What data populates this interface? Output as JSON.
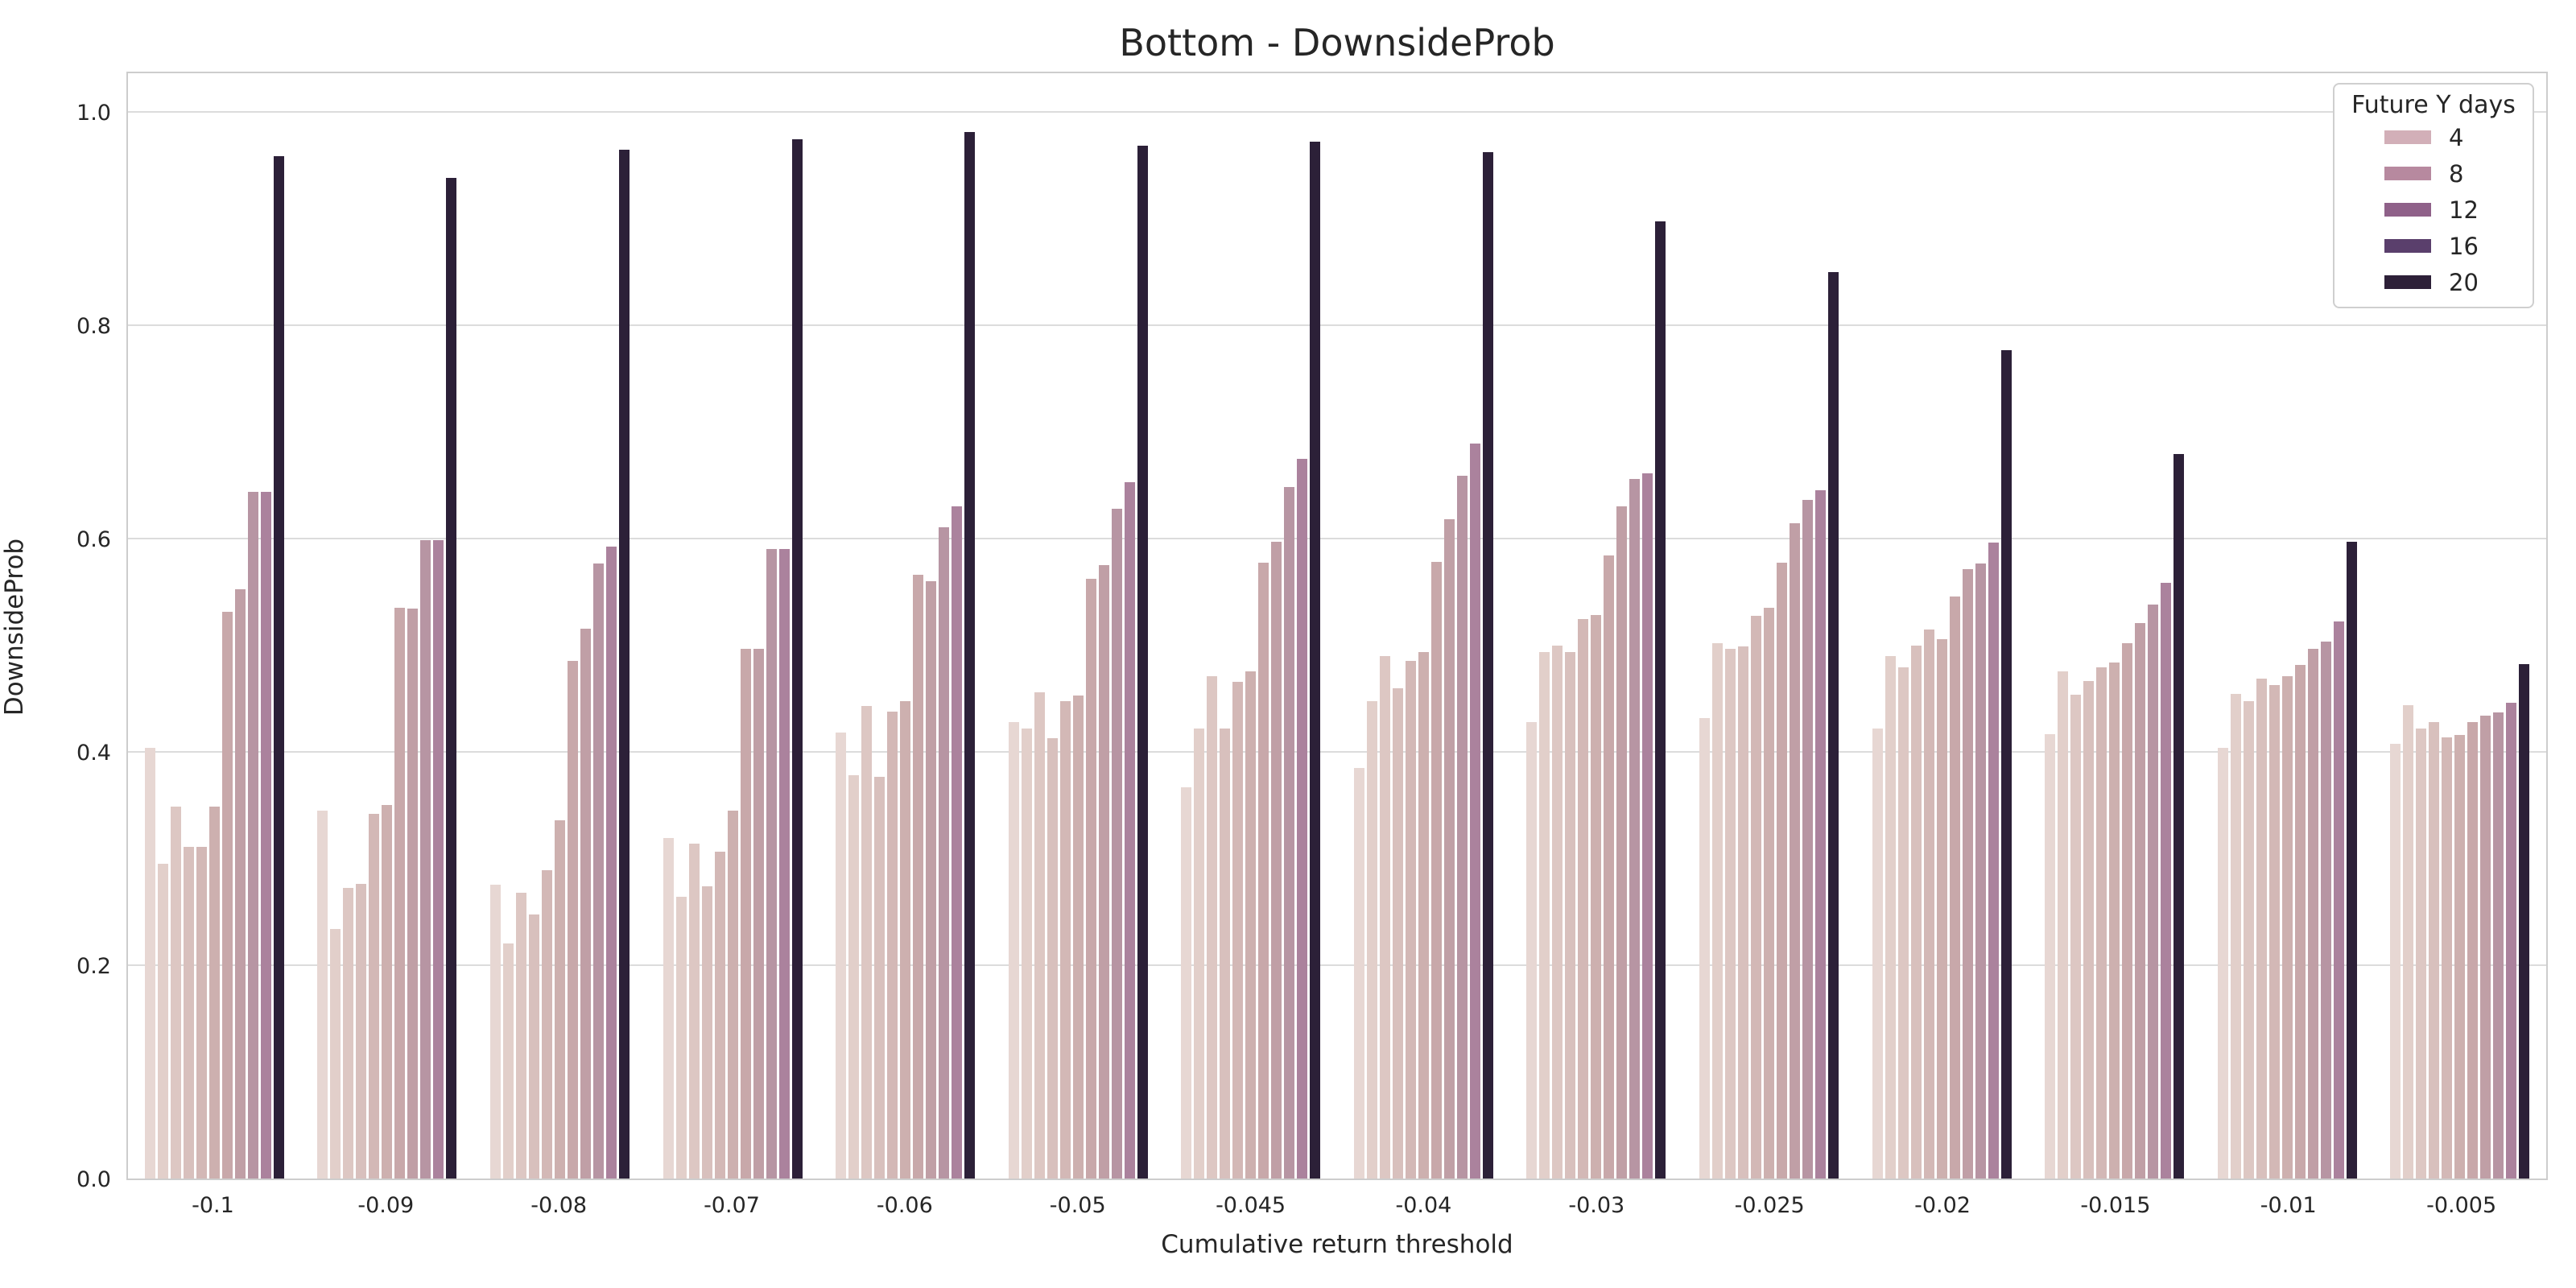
{
  "title": "Bottom - DownsideProb",
  "axes": {
    "xlabel": "Cumulative return threshold",
    "ylabel": "DownsideProb",
    "yticks": [
      {
        "label": "0.0",
        "value": 0.0
      },
      {
        "label": "0.2",
        "value": 0.2
      },
      {
        "label": "0.4",
        "value": 0.4
      },
      {
        "label": "0.6",
        "value": 0.6
      },
      {
        "label": "0.8",
        "value": 0.8
      },
      {
        "label": "1.0",
        "value": 1.0
      }
    ]
  },
  "legend": {
    "title": "Future Y days",
    "entries": [
      {
        "label": "4",
        "color": "#d2afb8"
      },
      {
        "label": "8",
        "color": "#b7899f"
      },
      {
        "label": "12",
        "color": "#8f6189"
      },
      {
        "label": "16",
        "color": "#5a3f6c"
      },
      {
        "label": "20",
        "color": "#2d2038"
      }
    ]
  },
  "colors": {
    "grid": "#dcdcdc",
    "spine": "#cdcdcd",
    "text": "#262626",
    "background": "#ffffff"
  },
  "chart_data": {
    "type": "bar",
    "title": "Bottom - DownsideProb",
    "xlabel": "Cumulative return threshold",
    "ylabel": "DownsideProb",
    "ylim": [
      0,
      1.04
    ],
    "grid": true,
    "legend_position": "upper right",
    "legend_title": "Future Y days",
    "legend_labels": [
      "4",
      "8",
      "12",
      "16",
      "20"
    ],
    "categories": [
      "-0.1",
      "-0.09",
      "-0.08",
      "-0.07",
      "-0.06",
      "-0.05",
      "-0.045",
      "-0.04",
      "-0.03",
      "-0.025",
      "-0.02",
      "-0.015",
      "-0.01",
      "-0.005"
    ],
    "series": [
      {
        "name": "bar-1",
        "color": "#e7d7d3",
        "values": [
          0.405,
          0.346,
          0.276,
          0.32,
          0.419,
          0.429,
          0.368,
          0.386,
          0.429,
          0.433,
          0.423,
          0.418,
          0.405,
          0.409
        ]
      },
      {
        "name": "bar-2",
        "color": "#e2cfca",
        "values": [
          0.296,
          0.235,
          0.221,
          0.265,
          0.379,
          0.423,
          0.423,
          0.449,
          0.495,
          0.503,
          0.491,
          0.477,
          0.456,
          0.445
        ]
      },
      {
        "name": "bar-3",
        "color": "#ddc7c3",
        "values": [
          0.35,
          0.273,
          0.269,
          0.315,
          0.444,
          0.457,
          0.472,
          0.491,
          0.501,
          0.498,
          0.481,
          0.455,
          0.449,
          0.423
        ]
      },
      {
        "name": "bar-4",
        "color": "#d8c0bd",
        "values": [
          0.312,
          0.277,
          0.248,
          0.275,
          0.378,
          0.414,
          0.423,
          0.461,
          0.495,
          0.5,
          0.501,
          0.468,
          0.47,
          0.429
        ]
      },
      {
        "name": "bar-5",
        "color": "#d3b8b6",
        "values": [
          0.312,
          0.343,
          0.29,
          0.307,
          0.439,
          0.449,
          0.467,
          0.487,
          0.526,
          0.529,
          0.516,
          0.481,
          0.464,
          0.415
        ]
      },
      {
        "name": "bar-6",
        "color": "#cdb0af",
        "values": [
          0.35,
          0.351,
          0.337,
          0.346,
          0.449,
          0.454,
          0.477,
          0.495,
          0.53,
          0.537,
          0.507,
          0.485,
          0.472,
          0.417
        ]
      },
      {
        "name": "bar-7",
        "color": "#c8a8aa",
        "values": [
          0.533,
          0.537,
          0.487,
          0.498,
          0.568,
          0.564,
          0.579,
          0.58,
          0.586,
          0.579,
          0.547,
          0.503,
          0.483,
          0.429
        ]
      },
      {
        "name": "bar-8",
        "color": "#c09fa6",
        "values": [
          0.554,
          0.536,
          0.517,
          0.498,
          0.562,
          0.577,
          0.599,
          0.62,
          0.632,
          0.616,
          0.573,
          0.522,
          0.498,
          0.435
        ]
      },
      {
        "name": "bar-9",
        "color": "#b795a3",
        "values": [
          0.646,
          0.6,
          0.578,
          0.592,
          0.612,
          0.63,
          0.65,
          0.661,
          0.658,
          0.638,
          0.578,
          0.54,
          0.505,
          0.438
        ]
      },
      {
        "name": "bar-10",
        "color": "#ab829d",
        "values": [
          0.646,
          0.6,
          0.594,
          0.592,
          0.632,
          0.655,
          0.677,
          0.691,
          0.663,
          0.647,
          0.598,
          0.56,
          0.524,
          0.447
        ]
      },
      {
        "name": "bar-11",
        "color": "#2c2038",
        "values": [
          0.961,
          0.941,
          0.967,
          0.977,
          0.984,
          0.971,
          0.975,
          0.965,
          0.9,
          0.852,
          0.779,
          0.681,
          0.599,
          0.484
        ]
      }
    ]
  }
}
